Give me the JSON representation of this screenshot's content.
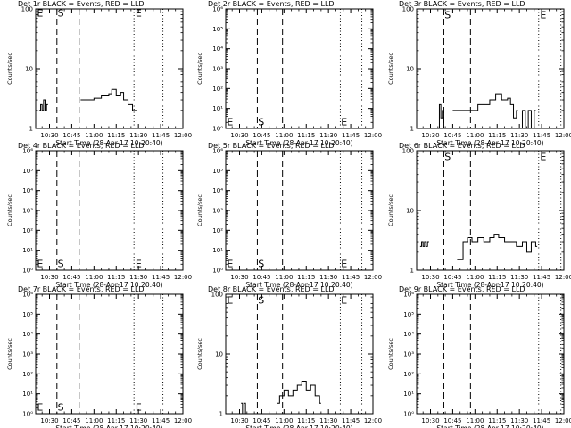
{
  "x_ticks": [
    "10:30",
    "10:45",
    "11:00",
    "11:15",
    "11:30",
    "11:45",
    "12:00"
  ],
  "x_minutes": [
    30,
    45,
    60,
    75,
    90,
    105,
    120
  ],
  "x_range_minutes": [
    20.67,
    120
  ],
  "xlabel": "Start Time (28-Apr-17 10:20:40)",
  "ylabel": "Counts/sec",
  "chart_data": [
    {
      "type": "line",
      "title": "Det 1r BLACK = Events, RED = LLD",
      "ylabel": "Counts/sec",
      "xlabel": "Start Time (28-Apr-17 10:20:40)",
      "yscale": "log",
      "ylim": [
        1,
        100
      ],
      "y_ticks": [
        "1",
        "10",
        "100"
      ],
      "y_tick_values": [
        1,
        10,
        100
      ],
      "x_ticks": [
        "10:30",
        "10:45",
        "11:00",
        "11:15",
        "11:30",
        "11:45",
        "12:00"
      ],
      "vlines": [
        {
          "t": 35,
          "style": "dash"
        },
        {
          "t": 50,
          "style": "dash"
        },
        {
          "t": 87,
          "style": "dot"
        },
        {
          "t": 106.5,
          "style": "dot"
        }
      ],
      "markers": [
        {
          "label": "E",
          "t": 21.5,
          "y": 85
        },
        {
          "label": "S",
          "t": 35.5,
          "y": 85
        },
        {
          "label": "E",
          "t": 88,
          "y": 85
        }
      ],
      "series": [
        {
          "segments": [
            {
              "x": [
                23,
                24,
                25,
                26,
                27,
                28
              ],
              "y": [
                2,
                2.5,
                2,
                3,
                2,
                2.5
              ]
            },
            {
              "x": [
                51,
                55,
                60,
                65,
                70,
                72,
                75,
                78,
                80,
                83,
                86,
                88
              ],
              "y": [
                3,
                3,
                3.2,
                3.5,
                3.8,
                4.5,
                3.5,
                4,
                3,
                2.5,
                2,
                2
              ]
            }
          ]
        }
      ]
    },
    {
      "type": "line",
      "title": "Det 2r BLACK = Events, RED = LLD",
      "ylabel": "Counts/sec",
      "xlabel": "Start Time (28-Apr-17 10:20:40)",
      "yscale": "log",
      "ylim": [
        1,
        1000000
      ],
      "y_ticks": [
        "10⁰",
        "10¹",
        "10²",
        "10³",
        "10⁴",
        "10⁵",
        "10⁶"
      ],
      "y_tick_values": [
        1,
        10,
        100,
        1000,
        10000,
        100000,
        1000000
      ],
      "x_ticks": [
        "10:30",
        "10:45",
        "11:00",
        "11:15",
        "11:30",
        "11:45",
        "12:00"
      ],
      "vlines": [
        {
          "t": 42,
          "style": "dash"
        },
        {
          "t": 59,
          "style": "dash"
        },
        {
          "t": 98,
          "style": "dot"
        },
        {
          "t": 112.5,
          "style": "dot"
        }
      ],
      "markers": [
        {
          "label": "E",
          "t": 21.5,
          "y": 2.2
        },
        {
          "label": "S",
          "t": 42.5,
          "y": 2.2
        },
        {
          "label": "E",
          "t": 98.5,
          "y": 2.2
        }
      ],
      "series": []
    },
    {
      "type": "line",
      "title": "Det 3r BLACK = Events, RED = LLD",
      "ylabel": "Counts/sec",
      "xlabel": "Start Time (28-Apr-17 10:20:40)",
      "yscale": "log",
      "ylim": [
        1,
        100
      ],
      "y_ticks": [
        "1",
        "10",
        "100"
      ],
      "y_tick_values": [
        1,
        10,
        100
      ],
      "x_ticks": [
        "10:30",
        "10:45",
        "11:00",
        "11:15",
        "11:30",
        "11:45",
        "12:00"
      ],
      "vlines": [
        {
          "t": 39,
          "style": "dash"
        },
        {
          "t": 57,
          "style": "dash"
        },
        {
          "t": 103,
          "style": "dot"
        },
        {
          "t": 118,
          "style": "dot"
        }
      ],
      "markers": [
        {
          "label": "S",
          "t": 39.5,
          "y": 80
        },
        {
          "label": "E",
          "t": 104,
          "y": 80
        }
      ],
      "series": [
        {
          "segments": [
            {
              "x": [
                35,
                36,
                37,
                38,
                39
              ],
              "y": [
                1,
                2.5,
                1.5,
                2,
                1
              ]
            },
            {
              "x": [
                45,
                55,
                62,
                66,
                70,
                74,
                78,
                82,
                84,
                86,
                88
              ],
              "y": [
                2,
                2,
                2.5,
                2.5,
                3,
                3.8,
                3,
                3.2,
                2.5,
                1.5,
                2
              ]
            },
            {
              "x": [
                90,
                92,
                94,
                96,
                98,
                100
              ],
              "y": [
                1,
                2,
                1,
                2,
                1,
                2
              ]
            }
          ]
        }
      ]
    },
    {
      "type": "line",
      "title": "Det 4r BLACK = Events, RED = LLD",
      "ylabel": "Counts/sec",
      "xlabel": "Start Time (28-Apr-17 10:20:40)",
      "yscale": "log",
      "ylim": [
        1,
        1000000
      ],
      "y_ticks": [
        "10⁰",
        "10¹",
        "10²",
        "10³",
        "10⁴",
        "10⁵",
        "10⁶"
      ],
      "y_tick_values": [
        1,
        10,
        100,
        1000,
        10000,
        100000,
        1000000
      ],
      "x_ticks": [
        "10:30",
        "10:45",
        "11:00",
        "11:15",
        "11:30",
        "11:45",
        "12:00"
      ],
      "vlines": [
        {
          "t": 35,
          "style": "dash"
        },
        {
          "t": 50,
          "style": "dash"
        },
        {
          "t": 87,
          "style": "dot"
        },
        {
          "t": 106.5,
          "style": "dot"
        }
      ],
      "markers": [
        {
          "label": "E",
          "t": 21.5,
          "y": 2.2
        },
        {
          "label": "S",
          "t": 35.5,
          "y": 2.2
        },
        {
          "label": "E",
          "t": 88,
          "y": 2.2
        }
      ],
      "series": []
    },
    {
      "type": "line",
      "title": "Det 5r BLACK = Events, RED = LLD",
      "ylabel": "Counts/sec",
      "xlabel": "Start Time (28-Apr-17 10:20:40)",
      "yscale": "log",
      "ylim": [
        1,
        1000000
      ],
      "y_ticks": [
        "10⁰",
        "10¹",
        "10²",
        "10³",
        "10⁴",
        "10⁵",
        "10⁶"
      ],
      "y_tick_values": [
        1,
        10,
        100,
        1000,
        10000,
        100000,
        1000000
      ],
      "x_ticks": [
        "10:30",
        "10:45",
        "11:00",
        "11:15",
        "11:30",
        "11:45",
        "12:00"
      ],
      "vlines": [
        {
          "t": 42,
          "style": "dash"
        },
        {
          "t": 59,
          "style": "dash"
        },
        {
          "t": 98,
          "style": "dot"
        },
        {
          "t": 112.5,
          "style": "dot"
        }
      ],
      "markers": [
        {
          "label": "E",
          "t": 21.5,
          "y": 2.2
        },
        {
          "label": "S",
          "t": 42.5,
          "y": 2.2
        },
        {
          "label": "E",
          "t": 98.5,
          "y": 2.2
        }
      ],
      "series": []
    },
    {
      "type": "line",
      "title": "Det 6r BLACK = Events, RED = LLD",
      "ylabel": "Counts/sec",
      "xlabel": "Start Time (28-Apr-17 10:20:40)",
      "yscale": "log",
      "ylim": [
        1,
        100
      ],
      "y_ticks": [
        "1",
        "10",
        "100"
      ],
      "y_tick_values": [
        1,
        10,
        100
      ],
      "x_ticks": [
        "10:30",
        "10:45",
        "11:00",
        "11:15",
        "11:30",
        "11:45",
        "12:00"
      ],
      "vlines": [
        {
          "t": 39,
          "style": "dash"
        },
        {
          "t": 57,
          "style": "dash"
        },
        {
          "t": 103,
          "style": "dot"
        },
        {
          "t": 118,
          "style": "dot"
        }
      ],
      "markers": [
        {
          "label": "S",
          "t": 39.5,
          "y": 80
        },
        {
          "label": "E",
          "t": 104,
          "y": 80
        }
      ],
      "series": [
        {
          "segments": [
            {
              "x": [
                23,
                24,
                25,
                26,
                27,
                28
              ],
              "y": [
                2.5,
                3,
                2.5,
                3,
                2.5,
                3
              ]
            },
            {
              "x": [
                48,
                52,
                55,
                58,
                62,
                66,
                70,
                73,
                76,
                80,
                84,
                88,
                92,
                95,
                98,
                101
              ],
              "y": [
                1.5,
                3,
                3.5,
                3,
                3.5,
                3,
                3.5,
                4,
                3.5,
                3,
                3,
                2.5,
                3,
                2,
                3,
                2.5
              ]
            }
          ]
        }
      ]
    },
    {
      "type": "line",
      "title": "Det 7r BLACK = Events, RED = LLD",
      "ylabel": "Counts/sec",
      "xlabel": "Start Time (28-Apr-17 10:20:40)",
      "yscale": "log",
      "ylim": [
        1,
        1000000
      ],
      "y_ticks": [
        "10⁰",
        "10¹",
        "10²",
        "10³",
        "10⁴",
        "10⁵",
        "10⁶"
      ],
      "y_tick_values": [
        1,
        10,
        100,
        1000,
        10000,
        100000,
        1000000
      ],
      "x_ticks": [
        "10:30",
        "10:45",
        "11:00",
        "11:15",
        "11:30",
        "11:45",
        "12:00"
      ],
      "vlines": [
        {
          "t": 35,
          "style": "dash"
        },
        {
          "t": 50,
          "style": "dash"
        },
        {
          "t": 87,
          "style": "dot"
        },
        {
          "t": 106.5,
          "style": "dot"
        }
      ],
      "markers": [
        {
          "label": "E",
          "t": 21.5,
          "y": 2.2
        },
        {
          "label": "S",
          "t": 35.5,
          "y": 2.2
        },
        {
          "label": "E",
          "t": 88,
          "y": 2.2
        }
      ],
      "series": []
    },
    {
      "type": "line",
      "title": "Det 8r BLACK = Events, RED = LLD",
      "ylabel": "Counts/sec",
      "xlabel": "Start Time (28-Apr-17 10:20:40)",
      "yscale": "log",
      "ylim": [
        1,
        100
      ],
      "y_ticks": [
        "1",
        "10",
        "100"
      ],
      "y_tick_values": [
        1,
        10,
        100
      ],
      "x_ticks": [
        "10:30",
        "10:45",
        "11:00",
        "11:15",
        "11:30",
        "11:45",
        "12:00"
      ],
      "vlines": [
        {
          "t": 42,
          "style": "dash"
        },
        {
          "t": 59,
          "style": "dash"
        },
        {
          "t": 98,
          "style": "dot"
        },
        {
          "t": 112.5,
          "style": "dot"
        }
      ],
      "markers": [
        {
          "label": "E",
          "t": 21.5,
          "y": 80
        },
        {
          "label": "S",
          "t": 42.5,
          "y": 80
        },
        {
          "label": "E",
          "t": 98.5,
          "y": 80
        }
      ],
      "series": [
        {
          "segments": [
            {
              "x": [
                31,
                32,
                33,
                34
              ],
              "y": [
                1.5,
                1,
                1.5,
                1
              ]
            },
            {
              "x": [
                55,
                57,
                60,
                63,
                66,
                69,
                72,
                75,
                78,
                81,
                84
              ],
              "y": [
                1.5,
                2,
                2.5,
                2,
                2.5,
                3,
                3.5,
                2.5,
                3,
                2,
                1.5
              ]
            }
          ]
        }
      ]
    },
    {
      "type": "line",
      "title": "Det 9r BLACK = Events, RED = LLD",
      "ylabel": "Counts/sec",
      "xlabel": "Start Time (28-Apr-17 10:20:40)",
      "yscale": "log",
      "ylim": [
        1,
        1000000
      ],
      "y_ticks": [
        "10⁰",
        "10¹",
        "10²",
        "10³",
        "10⁴",
        "10⁵",
        "10⁶"
      ],
      "y_tick_values": [
        1,
        10,
        100,
        1000,
        10000,
        100000,
        1000000
      ],
      "x_ticks": [
        "10:30",
        "10:45",
        "11:00",
        "11:15",
        "11:30",
        "11:45",
        "12:00"
      ],
      "vlines": [
        {
          "t": 39,
          "style": "dash"
        },
        {
          "t": 57,
          "style": "dash"
        },
        {
          "t": 103,
          "style": "dot"
        },
        {
          "t": 118,
          "style": "dot"
        }
      ],
      "markers": [],
      "series": []
    }
  ]
}
